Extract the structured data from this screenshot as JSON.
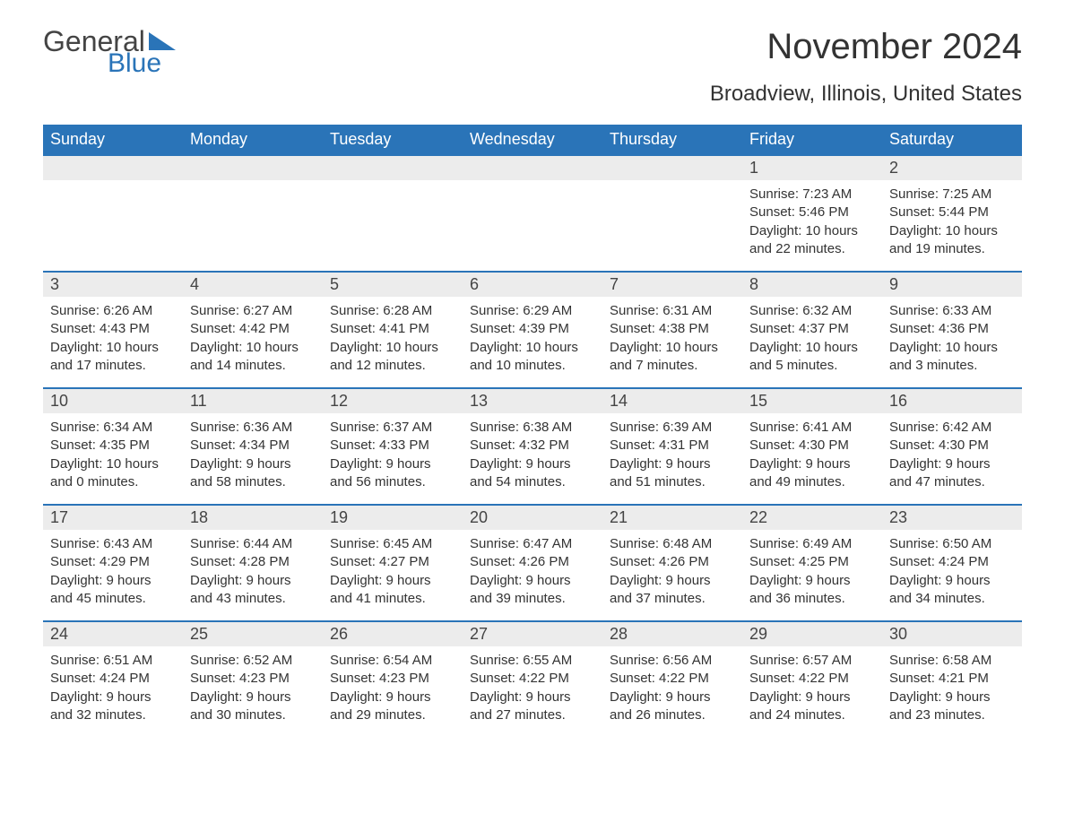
{
  "logo": {
    "word1": "General",
    "word2": "Blue"
  },
  "brand_color": "#2a74b8",
  "header_bg": "#2a74b8",
  "header_fg": "#ffffff",
  "daynum_bg": "#ececec",
  "text_color": "#333333",
  "month_title": "November 2024",
  "location": "Broadview, Illinois, United States",
  "day_headers": [
    "Sunday",
    "Monday",
    "Tuesday",
    "Wednesday",
    "Thursday",
    "Friday",
    "Saturday"
  ],
  "weeks": [
    [
      null,
      null,
      null,
      null,
      null,
      {
        "n": "1",
        "sunrise": "Sunrise: 7:23 AM",
        "sunset": "Sunset: 5:46 PM",
        "dl1": "Daylight: 10 hours",
        "dl2": "and 22 minutes."
      },
      {
        "n": "2",
        "sunrise": "Sunrise: 7:25 AM",
        "sunset": "Sunset: 5:44 PM",
        "dl1": "Daylight: 10 hours",
        "dl2": "and 19 minutes."
      }
    ],
    [
      {
        "n": "3",
        "sunrise": "Sunrise: 6:26 AM",
        "sunset": "Sunset: 4:43 PM",
        "dl1": "Daylight: 10 hours",
        "dl2": "and 17 minutes."
      },
      {
        "n": "4",
        "sunrise": "Sunrise: 6:27 AM",
        "sunset": "Sunset: 4:42 PM",
        "dl1": "Daylight: 10 hours",
        "dl2": "and 14 minutes."
      },
      {
        "n": "5",
        "sunrise": "Sunrise: 6:28 AM",
        "sunset": "Sunset: 4:41 PM",
        "dl1": "Daylight: 10 hours",
        "dl2": "and 12 minutes."
      },
      {
        "n": "6",
        "sunrise": "Sunrise: 6:29 AM",
        "sunset": "Sunset: 4:39 PM",
        "dl1": "Daylight: 10 hours",
        "dl2": "and 10 minutes."
      },
      {
        "n": "7",
        "sunrise": "Sunrise: 6:31 AM",
        "sunset": "Sunset: 4:38 PM",
        "dl1": "Daylight: 10 hours",
        "dl2": "and 7 minutes."
      },
      {
        "n": "8",
        "sunrise": "Sunrise: 6:32 AM",
        "sunset": "Sunset: 4:37 PM",
        "dl1": "Daylight: 10 hours",
        "dl2": "and 5 minutes."
      },
      {
        "n": "9",
        "sunrise": "Sunrise: 6:33 AM",
        "sunset": "Sunset: 4:36 PM",
        "dl1": "Daylight: 10 hours",
        "dl2": "and 3 minutes."
      }
    ],
    [
      {
        "n": "10",
        "sunrise": "Sunrise: 6:34 AM",
        "sunset": "Sunset: 4:35 PM",
        "dl1": "Daylight: 10 hours",
        "dl2": "and 0 minutes."
      },
      {
        "n": "11",
        "sunrise": "Sunrise: 6:36 AM",
        "sunset": "Sunset: 4:34 PM",
        "dl1": "Daylight: 9 hours",
        "dl2": "and 58 minutes."
      },
      {
        "n": "12",
        "sunrise": "Sunrise: 6:37 AM",
        "sunset": "Sunset: 4:33 PM",
        "dl1": "Daylight: 9 hours",
        "dl2": "and 56 minutes."
      },
      {
        "n": "13",
        "sunrise": "Sunrise: 6:38 AM",
        "sunset": "Sunset: 4:32 PM",
        "dl1": "Daylight: 9 hours",
        "dl2": "and 54 minutes."
      },
      {
        "n": "14",
        "sunrise": "Sunrise: 6:39 AM",
        "sunset": "Sunset: 4:31 PM",
        "dl1": "Daylight: 9 hours",
        "dl2": "and 51 minutes."
      },
      {
        "n": "15",
        "sunrise": "Sunrise: 6:41 AM",
        "sunset": "Sunset: 4:30 PM",
        "dl1": "Daylight: 9 hours",
        "dl2": "and 49 minutes."
      },
      {
        "n": "16",
        "sunrise": "Sunrise: 6:42 AM",
        "sunset": "Sunset: 4:30 PM",
        "dl1": "Daylight: 9 hours",
        "dl2": "and 47 minutes."
      }
    ],
    [
      {
        "n": "17",
        "sunrise": "Sunrise: 6:43 AM",
        "sunset": "Sunset: 4:29 PM",
        "dl1": "Daylight: 9 hours",
        "dl2": "and 45 minutes."
      },
      {
        "n": "18",
        "sunrise": "Sunrise: 6:44 AM",
        "sunset": "Sunset: 4:28 PM",
        "dl1": "Daylight: 9 hours",
        "dl2": "and 43 minutes."
      },
      {
        "n": "19",
        "sunrise": "Sunrise: 6:45 AM",
        "sunset": "Sunset: 4:27 PM",
        "dl1": "Daylight: 9 hours",
        "dl2": "and 41 minutes."
      },
      {
        "n": "20",
        "sunrise": "Sunrise: 6:47 AM",
        "sunset": "Sunset: 4:26 PM",
        "dl1": "Daylight: 9 hours",
        "dl2": "and 39 minutes."
      },
      {
        "n": "21",
        "sunrise": "Sunrise: 6:48 AM",
        "sunset": "Sunset: 4:26 PM",
        "dl1": "Daylight: 9 hours",
        "dl2": "and 37 minutes."
      },
      {
        "n": "22",
        "sunrise": "Sunrise: 6:49 AM",
        "sunset": "Sunset: 4:25 PM",
        "dl1": "Daylight: 9 hours",
        "dl2": "and 36 minutes."
      },
      {
        "n": "23",
        "sunrise": "Sunrise: 6:50 AM",
        "sunset": "Sunset: 4:24 PM",
        "dl1": "Daylight: 9 hours",
        "dl2": "and 34 minutes."
      }
    ],
    [
      {
        "n": "24",
        "sunrise": "Sunrise: 6:51 AM",
        "sunset": "Sunset: 4:24 PM",
        "dl1": "Daylight: 9 hours",
        "dl2": "and 32 minutes."
      },
      {
        "n": "25",
        "sunrise": "Sunrise: 6:52 AM",
        "sunset": "Sunset: 4:23 PM",
        "dl1": "Daylight: 9 hours",
        "dl2": "and 30 minutes."
      },
      {
        "n": "26",
        "sunrise": "Sunrise: 6:54 AM",
        "sunset": "Sunset: 4:23 PM",
        "dl1": "Daylight: 9 hours",
        "dl2": "and 29 minutes."
      },
      {
        "n": "27",
        "sunrise": "Sunrise: 6:55 AM",
        "sunset": "Sunset: 4:22 PM",
        "dl1": "Daylight: 9 hours",
        "dl2": "and 27 minutes."
      },
      {
        "n": "28",
        "sunrise": "Sunrise: 6:56 AM",
        "sunset": "Sunset: 4:22 PM",
        "dl1": "Daylight: 9 hours",
        "dl2": "and 26 minutes."
      },
      {
        "n": "29",
        "sunrise": "Sunrise: 6:57 AM",
        "sunset": "Sunset: 4:22 PM",
        "dl1": "Daylight: 9 hours",
        "dl2": "and 24 minutes."
      },
      {
        "n": "30",
        "sunrise": "Sunrise: 6:58 AM",
        "sunset": "Sunset: 4:21 PM",
        "dl1": "Daylight: 9 hours",
        "dl2": "and 23 minutes."
      }
    ]
  ]
}
